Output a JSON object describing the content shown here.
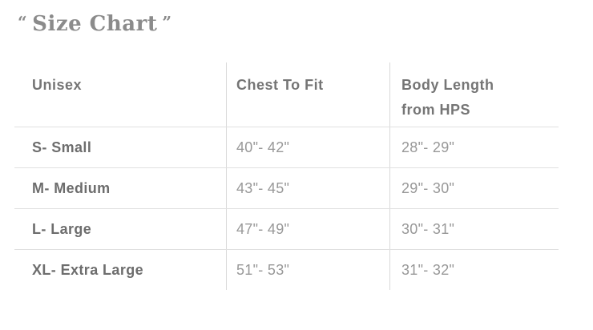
{
  "title": {
    "open_quote": "“",
    "text": "Size Chart",
    "close_quote": "”"
  },
  "colors": {
    "background": "#ffffff",
    "title": "#8b8b8b",
    "header_text": "#757575",
    "row_label": "#6d6d6d",
    "value_text": "#989898",
    "horizontal_line": "#e0e0e0",
    "vertical_line": "#d9d9d9"
  },
  "chart_data": {
    "type": "table",
    "title": "Size Chart",
    "columns": [
      "Unisex",
      "Chest To Fit",
      "Body Length from HPS"
    ],
    "rows": [
      [
        "S- Small",
        "40\"- 42\"",
        "28\"- 29\""
      ],
      [
        "M- Medium",
        "43\"- 45\"",
        "29\"- 30\""
      ],
      [
        "L- Large",
        "47\"- 49\"",
        "30\"- 31\""
      ],
      [
        "XL- Extra Large",
        "51\"- 53\"",
        "31\"- 32\""
      ]
    ]
  }
}
